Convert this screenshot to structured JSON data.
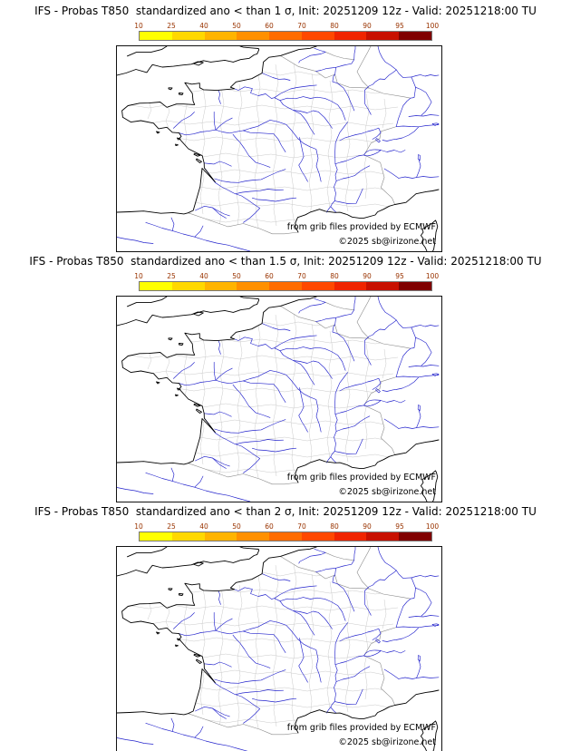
{
  "page": {
    "background": "#ffffff"
  },
  "panels": [
    {
      "title": "IFS - Probas T850  standardized ano < than 1 σ, Init: 20251209 12z - Valid: 20251218:00 TU",
      "credit": "from grib files provided by ECMWF",
      "copyright": "©2025 sb@irizone.net"
    },
    {
      "title": "IFS - Probas T850  standardized ano < than 1.5 σ, Init: 20251209 12z - Valid: 20251218:00 TU",
      "credit": "from grib files provided by ECMWF",
      "copyright": "©2025 sb@irizone.net"
    },
    {
      "title": "IFS - Probas T850  standardized ano < than 2 σ, Init: 20251209 12z - Valid: 20251218:00 TU",
      "credit": "from grib files provided by ECMWF",
      "copyright": "©2025 sb@irizone.net"
    }
  ],
  "colorbar": {
    "tick_labels": [
      "10",
      "25",
      "40",
      "50",
      "60",
      "70",
      "80",
      "90",
      "95",
      "100"
    ],
    "segment_colors": [
      "#ffff00",
      "#ffd800",
      "#ffb400",
      "#ff9000",
      "#ff6c00",
      "#ff4800",
      "#f02400",
      "#c81000",
      "#800000"
    ],
    "tick_color": "#993300"
  },
  "map": {
    "coast_color": "#000000",
    "river_color": "#2222cc",
    "department_color": "#c9c9c9",
    "country_border_color": "#8a8a8a"
  }
}
